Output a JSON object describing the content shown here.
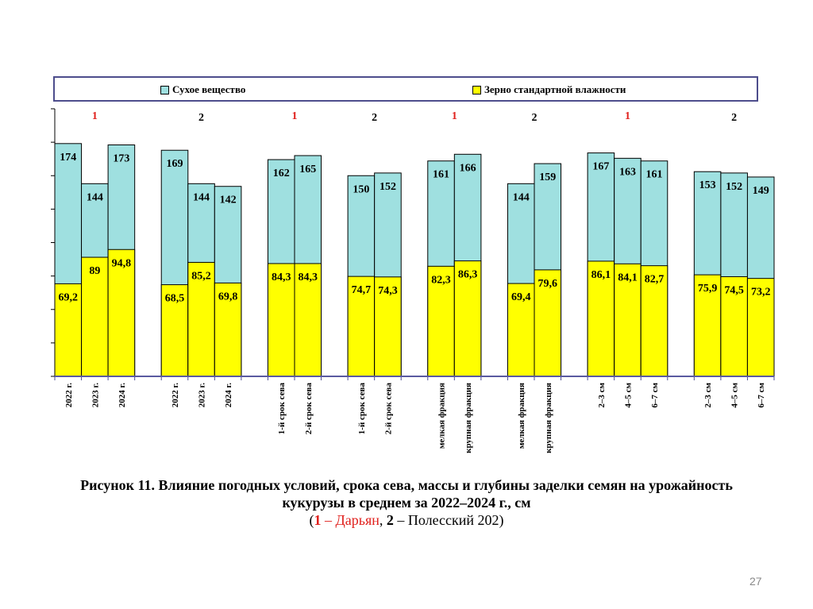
{
  "chart_data": {
    "type": "bar",
    "title": "",
    "xlabel": "",
    "ylabel": "",
    "ylim": [
      0,
      200
    ],
    "y_tick_step": 25,
    "y_tick_labels_shown": false,
    "grid": false,
    "legend_position": "top",
    "legend": [
      "Сухое вещество",
      "Зерно стандартной влажности"
    ],
    "colors": {
      "dry": "#9fe0e0",
      "grain": "#ffff00",
      "axis": "#5a5aa0",
      "red": "#e0201c"
    },
    "groups": [
      {
        "marker": "1",
        "marker_color": "red",
        "categories": [
          "2022 г.",
          "2023 г.",
          "2024 г."
        ],
        "dry": [
          174,
          144,
          173
        ],
        "grain": [
          69.2,
          89,
          94.8
        ],
        "dry_labels": [
          "174",
          "144",
          "173"
        ],
        "grain_labels": [
          "69,2",
          "89",
          "94,8"
        ]
      },
      {
        "marker": "2",
        "marker_color": "black",
        "categories": [
          "2022 г.",
          "2023 г.",
          "2024 г."
        ],
        "dry": [
          169,
          144,
          142
        ],
        "grain": [
          68.5,
          85.2,
          69.8
        ],
        "dry_labels": [
          "169",
          "144",
          "142"
        ],
        "grain_labels": [
          "68,5",
          "85,2",
          "69,8"
        ]
      },
      {
        "marker": "1",
        "marker_color": "red",
        "categories": [
          "1-й срок сева",
          "2-й срок сева"
        ],
        "dry": [
          162,
          165
        ],
        "grain": [
          84.3,
          84.3
        ],
        "dry_labels": [
          "162",
          "165"
        ],
        "grain_labels": [
          "84,3",
          "84,3"
        ]
      },
      {
        "marker": "2",
        "marker_color": "black",
        "categories": [
          "1-й срок сева",
          "2-й срок сева"
        ],
        "dry": [
          150,
          152
        ],
        "grain": [
          74.7,
          74.3
        ],
        "dry_labels": [
          "150",
          "152"
        ],
        "grain_labels": [
          "74,7",
          "74,3"
        ]
      },
      {
        "marker": "1",
        "marker_color": "red",
        "categories": [
          "мелкая фракция",
          "крупная фракция"
        ],
        "dry": [
          161,
          166
        ],
        "grain": [
          82.3,
          86.3
        ],
        "dry_labels": [
          "161",
          "166"
        ],
        "grain_labels": [
          "82,3",
          "86,3"
        ]
      },
      {
        "marker": "2",
        "marker_color": "black",
        "categories": [
          "мелкая фракция",
          "крупная фракция"
        ],
        "dry": [
          144,
          159
        ],
        "grain": [
          69.4,
          79.6
        ],
        "dry_labels": [
          "144",
          "159"
        ],
        "grain_labels": [
          "69,4",
          "79,6"
        ]
      },
      {
        "marker": "1",
        "marker_color": "red",
        "categories": [
          "2–3 см",
          "4–5 см",
          "6–7 см"
        ],
        "dry": [
          167,
          163,
          161
        ],
        "grain": [
          86.1,
          84.1,
          82.7
        ],
        "dry_labels": [
          "167",
          "163",
          "161"
        ],
        "grain_labels": [
          "86,1",
          "84,1",
          "82,7"
        ]
      },
      {
        "marker": "2",
        "marker_color": "black",
        "categories": [
          "2–3 см",
          "4–5 см",
          "6–7 см"
        ],
        "dry": [
          153,
          152,
          149
        ],
        "grain": [
          75.9,
          74.5,
          73.2
        ],
        "dry_labels": [
          "153",
          "152",
          "149"
        ],
        "grain_labels": [
          "75,9",
          "74,5",
          "73,2"
        ]
      }
    ]
  },
  "caption": {
    "line1": "Рисунок 11. Влияние погодных условий, срока сева, массы и глубины заделки семян на урожайность",
    "line2": "кукурузы в среднем за 2022–2024 г., см",
    "line3_open": "(",
    "line3_num1": "1",
    "line3_name1": " – Дарьян",
    "line3_sep": ", ",
    "line3_num2": "2",
    "line3_name2": " – Полесский 202)"
  },
  "page_number": "27"
}
